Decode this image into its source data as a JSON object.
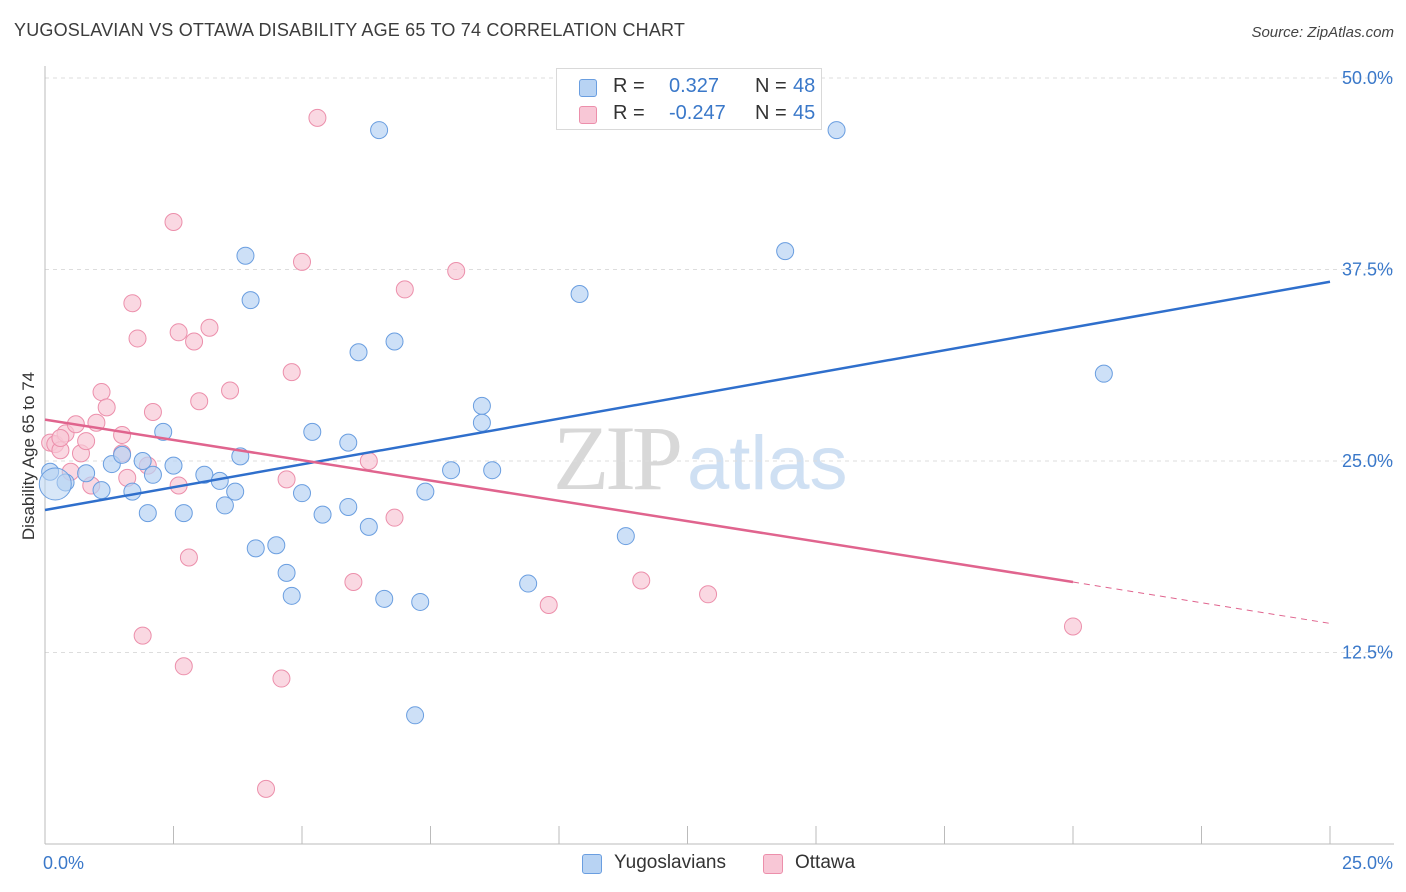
{
  "title": "YUGOSLAVIAN VS OTTAWA DISABILITY AGE 65 TO 74 CORRELATION CHART",
  "source": "Source: ZipAtlas.com",
  "watermark": {
    "part1": "ZIP",
    "part2": "atlas"
  },
  "colors": {
    "blue_fill": "#b8d3f3",
    "blue_stroke": "#6a9ee0",
    "blue_line": "#2f6fcc",
    "pink_fill": "#f8c7d6",
    "pink_stroke": "#ec8fab",
    "pink_line": "#e0648e",
    "tick_text": "#3a78c9",
    "grid": "#dddddd"
  },
  "legend": {
    "rows": [
      {
        "r_label": "R =",
        "r_value": "0.327",
        "n_label": "N =",
        "n_value": "48"
      },
      {
        "r_label": "R =",
        "r_value": "-0.247",
        "n_label": "N =",
        "n_value": "45"
      }
    ],
    "bottom": [
      "Yugoslavians",
      "Ottawa"
    ]
  },
  "chart_data": {
    "type": "scatter",
    "title": "YUGOSLAVIAN VS OTTAWA DISABILITY AGE 65 TO 74 CORRELATION CHART",
    "xlabel": "",
    "ylabel": "Disability Age 65 to 74",
    "xlim": [
      0,
      25
    ],
    "ylim": [
      0,
      50
    ],
    "x_tick_labels": [
      "0.0%",
      "25.0%"
    ],
    "y_ticks": [
      12.5,
      25.0,
      37.5,
      50.0
    ],
    "y_tick_labels": [
      "12.5%",
      "25.0%",
      "37.5%",
      "50.0%"
    ],
    "grid": true,
    "legend_position": "top-center",
    "series": [
      {
        "name": "Yugoslavians",
        "r": 0.327,
        "n": 48,
        "points": [
          [
            0.1,
            24.3
          ],
          [
            0.4,
            23.6
          ],
          [
            0.8,
            24.2
          ],
          [
            1.1,
            23.1
          ],
          [
            1.3,
            24.8
          ],
          [
            1.5,
            25.4
          ],
          [
            1.7,
            23.0
          ],
          [
            1.9,
            25.0
          ],
          [
            2.0,
            21.6
          ],
          [
            2.1,
            24.1
          ],
          [
            2.3,
            26.9
          ],
          [
            2.5,
            24.7
          ],
          [
            2.7,
            21.6
          ],
          [
            3.1,
            24.1
          ],
          [
            3.4,
            23.7
          ],
          [
            3.5,
            22.1
          ],
          [
            3.7,
            23.0
          ],
          [
            3.8,
            25.3
          ],
          [
            3.9,
            38.4
          ],
          [
            4.0,
            35.5
          ],
          [
            4.1,
            19.3
          ],
          [
            4.5,
            19.5
          ],
          [
            4.7,
            17.7
          ],
          [
            4.8,
            16.2
          ],
          [
            5.0,
            22.9
          ],
          [
            5.2,
            26.9
          ],
          [
            5.4,
            21.5
          ],
          [
            5.9,
            26.2
          ],
          [
            5.9,
            22.0
          ],
          [
            6.1,
            32.1
          ],
          [
            6.3,
            20.7
          ],
          [
            6.6,
            16.0
          ],
          [
            6.8,
            32.8
          ],
          [
            6.5,
            46.6
          ],
          [
            7.3,
            15.8
          ],
          [
            7.4,
            23.0
          ],
          [
            7.9,
            24.4
          ],
          [
            8.5,
            28.6
          ],
          [
            8.5,
            27.5
          ],
          [
            8.7,
            24.4
          ],
          [
            9.4,
            17.0
          ],
          [
            10.4,
            35.9
          ],
          [
            11.3,
            20.1
          ],
          [
            14.4,
            38.7
          ],
          [
            15.4,
            46.6
          ],
          [
            20.6,
            30.7
          ],
          [
            7.2,
            8.4
          ],
          [
            0.2,
            23.5
          ]
        ]
      },
      {
        "name": "Ottawa",
        "r": -0.247,
        "n": 45,
        "points": [
          [
            0.1,
            26.2
          ],
          [
            0.2,
            26.1
          ],
          [
            0.3,
            25.7
          ],
          [
            0.4,
            26.8
          ],
          [
            0.5,
            24.3
          ],
          [
            0.6,
            27.4
          ],
          [
            0.7,
            25.5
          ],
          [
            0.8,
            26.3
          ],
          [
            0.9,
            23.4
          ],
          [
            1.0,
            27.5
          ],
          [
            1.1,
            29.5
          ],
          [
            1.2,
            28.5
          ],
          [
            1.5,
            26.7
          ],
          [
            1.6,
            23.9
          ],
          [
            1.7,
            35.3
          ],
          [
            1.8,
            33.0
          ],
          [
            1.9,
            13.6
          ],
          [
            2.0,
            24.7
          ],
          [
            2.1,
            28.2
          ],
          [
            2.6,
            33.4
          ],
          [
            2.9,
            32.8
          ],
          [
            2.6,
            23.4
          ],
          [
            2.5,
            40.6
          ],
          [
            2.7,
            11.6
          ],
          [
            2.8,
            18.7
          ],
          [
            3.0,
            28.9
          ],
          [
            3.2,
            33.7
          ],
          [
            3.6,
            29.6
          ],
          [
            4.3,
            3.6
          ],
          [
            4.6,
            10.8
          ],
          [
            4.7,
            23.8
          ],
          [
            4.8,
            30.8
          ],
          [
            5.0,
            38.0
          ],
          [
            6.0,
            17.1
          ],
          [
            6.3,
            25.0
          ],
          [
            6.8,
            21.3
          ],
          [
            7.0,
            36.2
          ],
          [
            8.0,
            37.4
          ],
          [
            9.8,
            15.6
          ],
          [
            11.6,
            17.2
          ],
          [
            12.9,
            16.3
          ],
          [
            5.3,
            47.4
          ],
          [
            20.0,
            14.2
          ],
          [
            1.5,
            25.5
          ],
          [
            0.3,
            26.5
          ]
        ]
      }
    ],
    "trend_lines": [
      {
        "series": "Yugoslavians",
        "from": [
          0,
          21.8
        ],
        "to": [
          25,
          36.7
        ],
        "style": "solid"
      },
      {
        "series": "Ottawa",
        "from": [
          0,
          27.7
        ],
        "to": [
          20.0,
          17.1
        ],
        "style": "solid"
      },
      {
        "series": "Ottawa",
        "from": [
          20.0,
          17.1
        ],
        "to": [
          25,
          14.4
        ],
        "style": "dashed"
      }
    ]
  }
}
